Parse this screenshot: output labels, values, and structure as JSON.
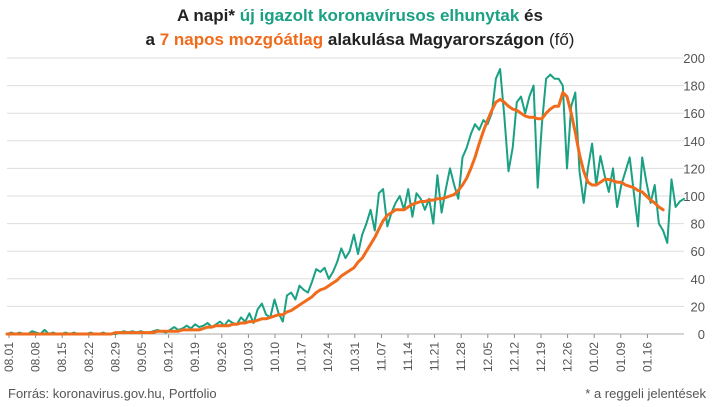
{
  "title": {
    "line1_prefix": "A napi* ",
    "line1_highlight": "új igazolt koronavírusos elhunytak",
    "line1_suffix": " és",
    "line2_prefix": "a ",
    "line2_highlight": "7 napos mozgóátlag",
    "line2_suffix": " alakulása Magyarországon",
    "line2_unit": " (fő)"
  },
  "source": "Forrás: koronavirus.gov.hu, Portfolio",
  "footnote": "* a reggeli jelentések",
  "colors": {
    "daily": "#1aa083",
    "average": "#f06b1b",
    "grid": "#dddddd",
    "text": "#555555"
  },
  "chart_data": {
    "type": "line",
    "x_tick_labels": [
      "08.01",
      "08.08",
      "08.15",
      "08.22",
      "08.29",
      "09.05",
      "09.12",
      "09.19",
      "09.26",
      "10.03",
      "10.10",
      "10.17",
      "10.24",
      "10.31",
      "11.07",
      "11.14",
      "11.21",
      "11.28",
      "12.05",
      "12.12",
      "12.19",
      "12.26",
      "01.02",
      "01.09",
      "01.16"
    ],
    "y_ticks": [
      0,
      20,
      40,
      60,
      80,
      100,
      120,
      140,
      160,
      180,
      200
    ],
    "ylim": [
      0,
      200
    ],
    "grid": true,
    "y_axis_side": "right",
    "series": [
      {
        "values": [
          0,
          1,
          0,
          1,
          0,
          0,
          2,
          1,
          0,
          3,
          0,
          1,
          0,
          0,
          1,
          0,
          1,
          0,
          0,
          0,
          1,
          0,
          0,
          1,
          0,
          0,
          0,
          1,
          2,
          1,
          2,
          1,
          2,
          1,
          1,
          2,
          3,
          2,
          1,
          3,
          5,
          3,
          4,
          6,
          4,
          7,
          5,
          6,
          8,
          5,
          7,
          9,
          6,
          10,
          8,
          7,
          12,
          9,
          15,
          8,
          18,
          22,
          14,
          12,
          25,
          15,
          9,
          28,
          30,
          25,
          35,
          32,
          30,
          38,
          47,
          45,
          48,
          40,
          45,
          52,
          62,
          55,
          60,
          72,
          58,
          72,
          80,
          90,
          75,
          102,
          105,
          78,
          88,
          95,
          100,
          90,
          105,
          85,
          102,
          98,
          90,
          98,
          80,
          115,
          88,
          105,
          120,
          108,
          98,
          128,
          135,
          145,
          152,
          148,
          155,
          152,
          160,
          185,
          192,
          158,
          118,
          135,
          168,
          172,
          160,
          172,
          180,
          106,
          152,
          185,
          188,
          185,
          185,
          180,
          120,
          165,
          175,
          118,
          95,
          120,
          138,
          108,
          129,
          115,
          103,
          120,
          92,
          108,
          118,
          128,
          102,
          78,
          128,
          110,
          95,
          108,
          80,
          75,
          66,
          112,
          92,
          96,
          98
        ]
      },
      {
        "values": [
          0,
          0,
          0,
          0,
          0,
          0,
          0,
          0,
          0,
          0,
          0,
          0,
          0,
          0,
          0,
          0,
          0,
          0,
          0,
          0,
          0,
          0,
          0,
          0,
          0,
          0,
          1,
          1,
          1,
          1,
          1,
          1,
          1,
          1,
          1,
          1,
          2,
          2,
          2,
          2,
          2,
          2,
          3,
          3,
          3,
          3,
          3,
          4,
          5,
          5,
          6,
          6,
          6,
          6,
          7,
          7,
          8,
          8,
          9,
          9,
          10,
          11,
          11,
          12,
          13,
          14,
          14,
          16,
          17,
          19,
          21,
          23,
          25,
          27,
          30,
          32,
          33,
          35,
          37,
          39,
          42,
          44,
          46,
          48,
          52,
          55,
          60,
          65,
          70,
          76,
          82,
          86,
          88,
          90,
          90,
          90,
          92,
          94,
          95,
          96,
          96,
          97,
          97,
          98,
          98,
          99,
          100,
          101,
          104,
          108,
          113,
          120,
          128,
          138,
          147,
          155,
          162,
          168,
          170,
          168,
          165,
          163,
          162,
          160,
          158,
          157,
          157,
          156,
          156,
          160,
          163,
          165,
          165,
          175,
          172,
          160,
          146,
          130,
          118,
          110,
          108,
          108,
          110,
          112,
          112,
          111,
          110,
          110,
          108,
          107,
          106,
          104,
          103,
          100,
          97,
          95,
          92,
          90
        ]
      }
    ]
  }
}
